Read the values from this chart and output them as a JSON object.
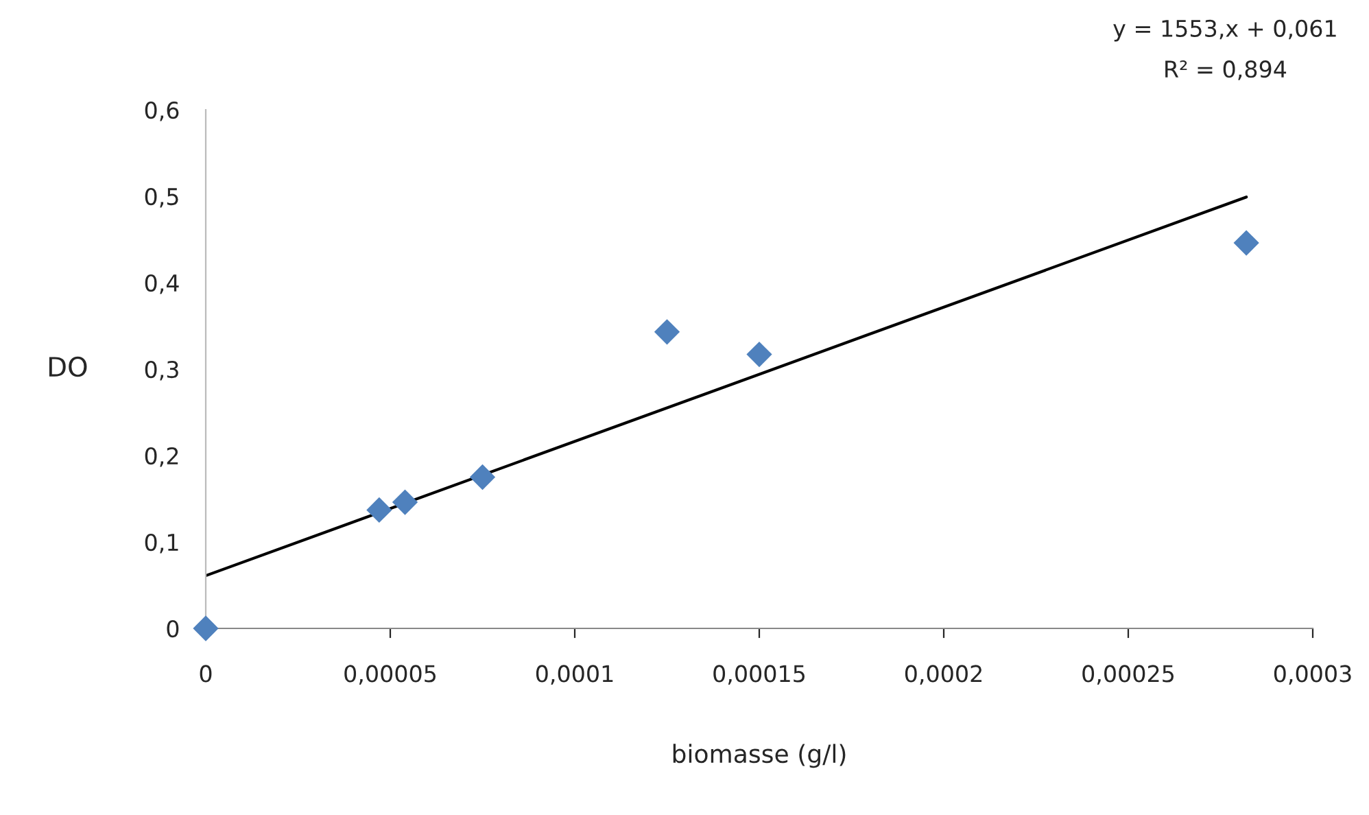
{
  "chart_data": {
    "type": "scatter",
    "xlabel": "biomasse (g/l)",
    "ylabel": "DO",
    "annotations": [
      "y = 1553,x + 0,061",
      "R² = 0,894"
    ],
    "series": [
      {
        "color": "#4f81bd",
        "marker": "diamond",
        "x": [
          0,
          4.7e-05,
          5.4e-05,
          7.5e-05,
          0.000125,
          0.00015,
          0.000282
        ],
        "values": [
          0,
          0.137,
          0.146,
          0.175,
          0.343,
          0.317,
          0.446
        ]
      },
      {
        "type": "line",
        "color": "#000000",
        "marker": "none",
        "line_style": "solid",
        "x": [
          0,
          0.000282
        ],
        "values": [
          0.061,
          0.499
        ]
      }
    ],
    "xlim": [
      0,
      0.0003
    ],
    "ylim": [
      0,
      0.6
    ],
    "xticks": [
      0,
      {
        "value": 5e-05,
        "label": "0,00005"
      },
      {
        "value": 0.0001,
        "label": "0,0001"
      },
      {
        "value": 0.00015,
        "label": "0,00015"
      },
      {
        "value": 0.0002,
        "label": "0,0002"
      },
      {
        "value": 0.00025,
        "label": "0,00025"
      },
      {
        "value": 0.0003,
        "label": "0,0003"
      }
    ],
    "yticks": [
      0,
      {
        "value": 0.1,
        "label": "0,1"
      },
      {
        "value": 0.2,
        "label": "0,2"
      },
      {
        "value": 0.3,
        "label": "0,3"
      },
      {
        "value": 0.4,
        "label": "0,4"
      },
      {
        "value": 0.5,
        "label": "0,5"
      },
      {
        "value": 0.6,
        "label": "0,6"
      }
    ],
    "grid": false,
    "legend": false
  }
}
